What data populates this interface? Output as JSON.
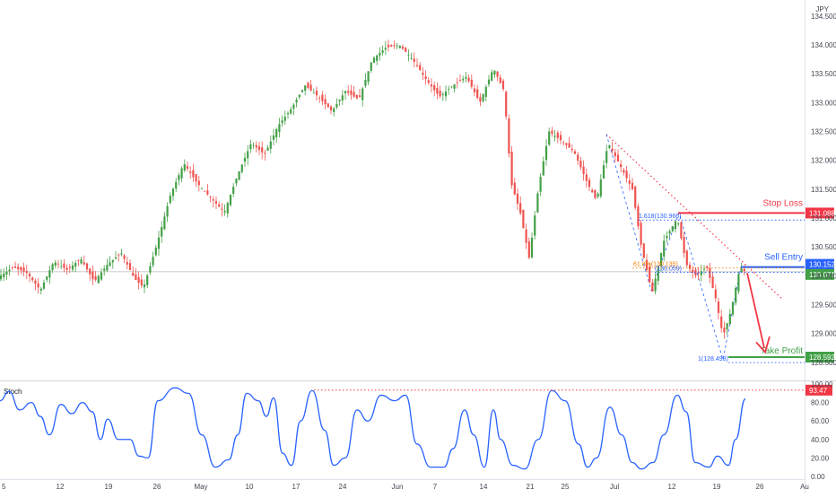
{
  "chart_data": {
    "type": "candlestick",
    "currency_label": "JPY",
    "price_axis": {
      "ylim": [
        128.25,
        134.7
      ],
      "ticks": [
        "134.500",
        "134.000",
        "133.500",
        "133.000",
        "132.500",
        "132.000",
        "131.500",
        "131.000",
        "130.500",
        "130.000",
        "129.500",
        "129.000",
        "128.500"
      ]
    },
    "stoch_axis": {
      "label": "Stoch",
      "ylim": [
        -3,
        103
      ],
      "ticks": [
        "100.00",
        "80.00",
        "60.00",
        "40.00",
        "20.00",
        "0.00"
      ]
    },
    "date_ticks": [
      "5",
      "12",
      "19",
      "26",
      "May",
      "10",
      "17",
      "24",
      "Jun",
      "7",
      "14",
      "21",
      "25",
      "Jul",
      "12",
      "19",
      "26",
      "Au"
    ],
    "reference_line": 130.071,
    "price_data": [
      {
        "x": 0,
        "y": 130.0
      },
      {
        "x": 15,
        "y": 130.15
      },
      {
        "x": 30,
        "y": 130.05
      },
      {
        "x": 45,
        "y": 129.75
      },
      {
        "x": 60,
        "y": 130.25
      },
      {
        "x": 75,
        "y": 130.1
      },
      {
        "x": 90,
        "y": 130.3
      },
      {
        "x": 105,
        "y": 129.9
      },
      {
        "x": 120,
        "y": 130.2
      },
      {
        "x": 135,
        "y": 130.4
      },
      {
        "x": 150,
        "y": 129.95
      },
      {
        "x": 160,
        "y": 129.8
      },
      {
        "x": 175,
        "y": 130.55
      },
      {
        "x": 190,
        "y": 131.4
      },
      {
        "x": 205,
        "y": 131.95
      },
      {
        "x": 220,
        "y": 131.6
      },
      {
        "x": 235,
        "y": 131.35
      },
      {
        "x": 250,
        "y": 131.1
      },
      {
        "x": 265,
        "y": 131.75
      },
      {
        "x": 280,
        "y": 132.3
      },
      {
        "x": 295,
        "y": 132.1
      },
      {
        "x": 310,
        "y": 132.6
      },
      {
        "x": 325,
        "y": 132.9
      },
      {
        "x": 340,
        "y": 133.3
      },
      {
        "x": 355,
        "y": 133.1
      },
      {
        "x": 370,
        "y": 132.85
      },
      {
        "x": 385,
        "y": 133.2
      },
      {
        "x": 400,
        "y": 133.05
      },
      {
        "x": 415,
        "y": 133.75
      },
      {
        "x": 430,
        "y": 133.95
      },
      {
        "x": 445,
        "y": 134.0
      },
      {
        "x": 460,
        "y": 133.75
      },
      {
        "x": 475,
        "y": 133.4
      },
      {
        "x": 490,
        "y": 133.1
      },
      {
        "x": 505,
        "y": 133.3
      },
      {
        "x": 520,
        "y": 133.45
      },
      {
        "x": 535,
        "y": 133.0
      },
      {
        "x": 550,
        "y": 133.6
      },
      {
        "x": 562,
        "y": 133.2
      },
      {
        "x": 570,
        "y": 131.6
      },
      {
        "x": 580,
        "y": 131.1
      },
      {
        "x": 590,
        "y": 130.3
      },
      {
        "x": 600,
        "y": 131.5
      },
      {
        "x": 612,
        "y": 132.5
      },
      {
        "x": 625,
        "y": 132.35
      },
      {
        "x": 640,
        "y": 132.15
      },
      {
        "x": 655,
        "y": 131.6
      },
      {
        "x": 665,
        "y": 131.3
      },
      {
        "x": 678,
        "y": 132.3
      },
      {
        "x": 690,
        "y": 131.95
      },
      {
        "x": 705,
        "y": 131.5
      },
      {
        "x": 715,
        "y": 130.5
      },
      {
        "x": 727,
        "y": 129.7
      },
      {
        "x": 740,
        "y": 130.6
      },
      {
        "x": 755,
        "y": 131.0
      },
      {
        "x": 765,
        "y": 130.2
      },
      {
        "x": 775,
        "y": 130.0
      },
      {
        "x": 788,
        "y": 130.15
      },
      {
        "x": 798,
        "y": 129.6
      },
      {
        "x": 806,
        "y": 128.95
      },
      {
        "x": 815,
        "y": 129.4
      },
      {
        "x": 825,
        "y": 130.15
      },
      {
        "x": 832,
        "y": 130.05
      }
    ],
    "stoch_values": [
      {
        "x": 0,
        "y": 82
      },
      {
        "x": 10,
        "y": 92
      },
      {
        "x": 22,
        "y": 72
      },
      {
        "x": 35,
        "y": 80
      },
      {
        "x": 45,
        "y": 65
      },
      {
        "x": 55,
        "y": 45
      },
      {
        "x": 68,
        "y": 78
      },
      {
        "x": 80,
        "y": 68
      },
      {
        "x": 92,
        "y": 80
      },
      {
        "x": 103,
        "y": 70
      },
      {
        "x": 112,
        "y": 40
      },
      {
        "x": 120,
        "y": 62
      },
      {
        "x": 132,
        "y": 40
      },
      {
        "x": 145,
        "y": 40
      },
      {
        "x": 155,
        "y": 22
      },
      {
        "x": 165,
        "y": 20
      },
      {
        "x": 176,
        "y": 82
      },
      {
        "x": 195,
        "y": 96
      },
      {
        "x": 210,
        "y": 90
      },
      {
        "x": 225,
        "y": 45
      },
      {
        "x": 240,
        "y": 10
      },
      {
        "x": 255,
        "y": 18
      },
      {
        "x": 265,
        "y": 45
      },
      {
        "x": 275,
        "y": 90
      },
      {
        "x": 288,
        "y": 82
      },
      {
        "x": 297,
        "y": 65
      },
      {
        "x": 305,
        "y": 85
      },
      {
        "x": 315,
        "y": 25
      },
      {
        "x": 325,
        "y": 12
      },
      {
        "x": 335,
        "y": 60
      },
      {
        "x": 348,
        "y": 93
      },
      {
        "x": 362,
        "y": 50
      },
      {
        "x": 372,
        "y": 12
      },
      {
        "x": 385,
        "y": 20
      },
      {
        "x": 398,
        "y": 72
      },
      {
        "x": 410,
        "y": 60
      },
      {
        "x": 425,
        "y": 88
      },
      {
        "x": 440,
        "y": 82
      },
      {
        "x": 452,
        "y": 88
      },
      {
        "x": 465,
        "y": 35
      },
      {
        "x": 480,
        "y": 10
      },
      {
        "x": 495,
        "y": 10
      },
      {
        "x": 505,
        "y": 30
      },
      {
        "x": 518,
        "y": 72
      },
      {
        "x": 528,
        "y": 45
      },
      {
        "x": 540,
        "y": 10
      },
      {
        "x": 550,
        "y": 72
      },
      {
        "x": 558,
        "y": 40
      },
      {
        "x": 572,
        "y": 12
      },
      {
        "x": 585,
        "y": 8
      },
      {
        "x": 600,
        "y": 40
      },
      {
        "x": 615,
        "y": 93
      },
      {
        "x": 630,
        "y": 82
      },
      {
        "x": 645,
        "y": 35
      },
      {
        "x": 655,
        "y": 10
      },
      {
        "x": 665,
        "y": 20
      },
      {
        "x": 680,
        "y": 75
      },
      {
        "x": 693,
        "y": 45
      },
      {
        "x": 705,
        "y": 15
      },
      {
        "x": 715,
        "y": 8
      },
      {
        "x": 728,
        "y": 15
      },
      {
        "x": 740,
        "y": 45
      },
      {
        "x": 755,
        "y": 88
      },
      {
        "x": 765,
        "y": 70
      },
      {
        "x": 775,
        "y": 15
      },
      {
        "x": 790,
        "y": 10
      },
      {
        "x": 800,
        "y": 22
      },
      {
        "x": 812,
        "y": 12
      },
      {
        "x": 820,
        "y": 40
      },
      {
        "x": 831,
        "y": 84
      }
    ],
    "levels": [
      {
        "label": "Stop Loss",
        "value": 131.088,
        "badge": "131.088",
        "color": "#f23645"
      },
      {
        "label": "Sell Entry",
        "value": 130.152,
        "badge": "130.152",
        "color": "#2962ff"
      },
      {
        "label": "",
        "value": 130.071,
        "badge": "130.071",
        "color": "#43a047"
      },
      {
        "label": "Take Profit",
        "value": 128.592,
        "badge": "128.592",
        "color": "#43a047"
      }
    ],
    "fib_labels": [
      {
        "text": "1.618(130.966)",
        "price": 130.966,
        "color": "#2962ff"
      },
      {
        "text": "61.8%(130.135)",
        "price": 130.135,
        "color": "#f57c00"
      },
      {
        "text": "(130.059)",
        "price": 130.059,
        "color": "#2962ff"
      },
      {
        "text": "1(128.498)",
        "price": 128.498,
        "color": "#2962ff"
      }
    ],
    "stoch_badge": {
      "value": 93.47,
      "text": "93.47",
      "color": "#f23645"
    },
    "colors": {
      "up": "#26a69a",
      "up_strong": "#43a047",
      "down": "#ef5350",
      "stoch": "#2962ff",
      "grid": "#e0e3eb"
    }
  }
}
